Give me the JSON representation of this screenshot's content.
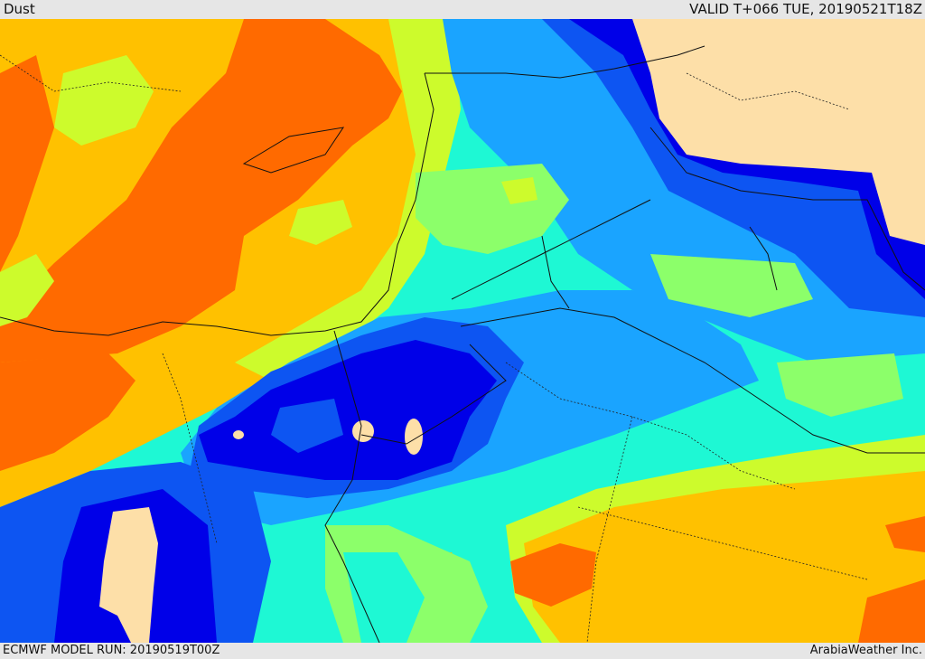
{
  "header": {
    "title": "Dust",
    "valid_time": "VALID T+066 TUE, 20190521T18Z"
  },
  "footer": {
    "model_run": "ECMWF MODEL RUN: 20190519T00Z",
    "credit": "ArabiaWeather Inc."
  },
  "legend_colors": {
    "very_low": "#fddfa8",
    "low_1": "#0000e8",
    "low_2": "#0d55f2",
    "low_3": "#1aa4ff",
    "moderate_1": "#1ef8d4",
    "moderate_2": "#8cff6a",
    "moderate_3": "#cdfb2c",
    "high_1": "#ffc100",
    "high_2": "#ff6a00"
  }
}
